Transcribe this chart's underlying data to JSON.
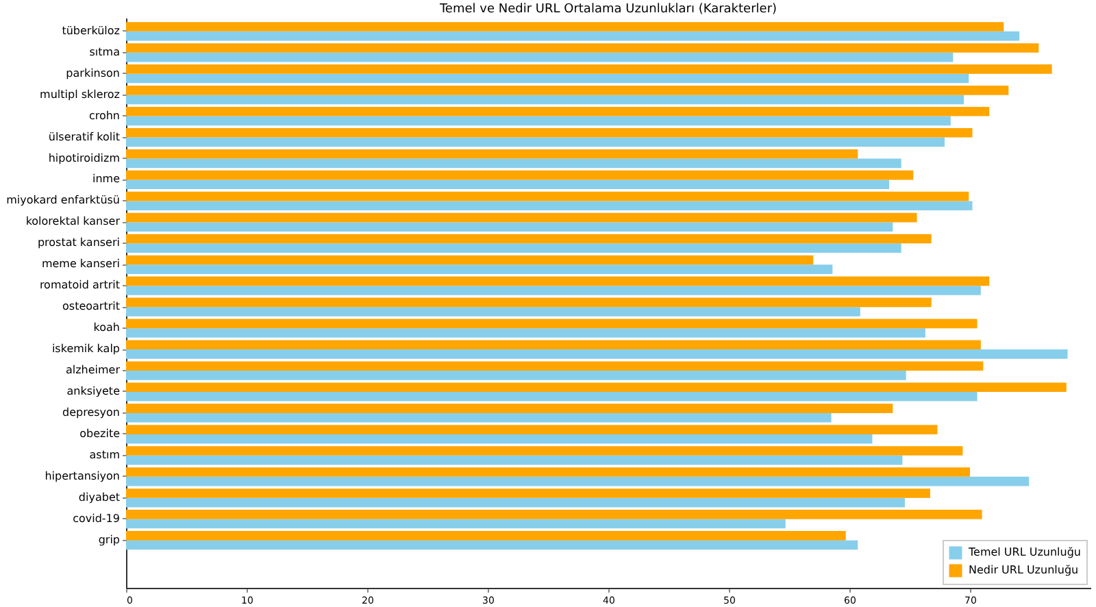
{
  "chart_data": {
    "type": "bar",
    "orientation": "horizontal",
    "title": "Temel ve Nedir URL Ortalama Uzunlukları (Karakterler)",
    "categories": [
      "tüberküloz",
      "sıtma",
      "parkinson",
      "multipl skleroz",
      "crohn",
      "ülseratif kolit",
      "hipotiroidizm",
      "inme",
      "miyokard enfarktüsü",
      "kolorektal kanser",
      "prostat kanseri",
      "meme kanseri",
      "romatoid artrit",
      "osteoartrit",
      "koah",
      "iskemik kalp",
      "alzheimer",
      "anksiyete",
      "depresyon",
      "obezite",
      "astım",
      "hipertansiyon",
      "diyabet",
      "covid-19",
      "grip"
    ],
    "series": [
      {
        "name": "Temel URL Uzunluğu",
        "color": "#87ceeb",
        "values": [
          74.1,
          68.6,
          69.9,
          69.5,
          68.4,
          67.9,
          64.3,
          63.3,
          70.2,
          63.6,
          64.3,
          58.6,
          70.9,
          60.9,
          66.3,
          78.1,
          64.7,
          70.6,
          58.5,
          61.9,
          64.4,
          74.9,
          64.6,
          54.7,
          60.7
        ]
      },
      {
        "name": "Nedir URL Uzunluğu",
        "color": "#ffa500",
        "values": [
          72.8,
          75.7,
          76.8,
          73.2,
          71.6,
          70.2,
          60.7,
          65.3,
          69.9,
          65.6,
          66.8,
          57.0,
          71.6,
          66.8,
          70.6,
          70.9,
          71.1,
          78.0,
          63.6,
          67.3,
          69.4,
          70.0,
          66.7,
          71.0,
          59.7
        ]
      }
    ],
    "xlim": [
      0,
      80
    ],
    "xticks": [
      0,
      10,
      20,
      30,
      40,
      50,
      60,
      70
    ],
    "grid": false,
    "legend": "bottom right"
  }
}
